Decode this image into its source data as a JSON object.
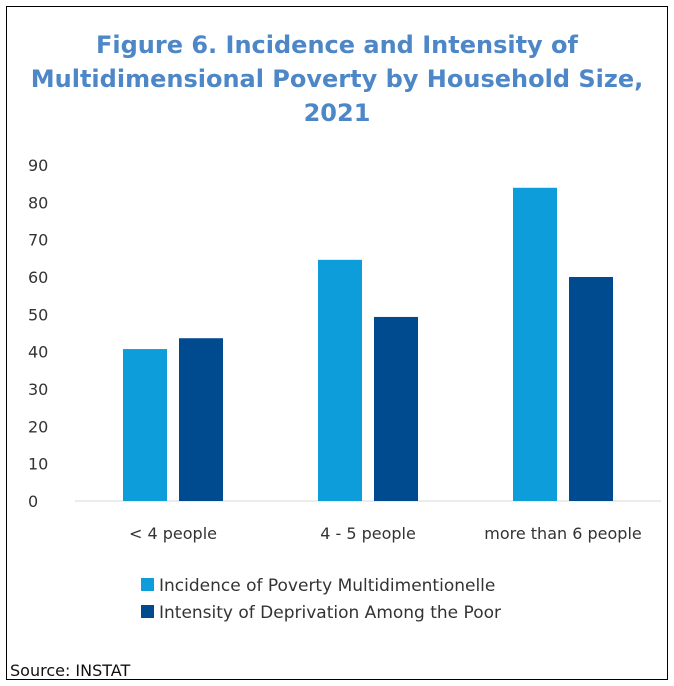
{
  "chart_data": {
    "type": "bar",
    "title": "Figure 6. Incidence and Intensity of\nMultidimensional Poverty by Household Size,\n2021",
    "categories": [
      "< 4 people",
      "4 - 5 people",
      "more than 6 people"
    ],
    "series": [
      {
        "name": "Incidence of Poverty Multidimentionelle",
        "values": [
          40.7,
          64.6,
          83.9
        ],
        "color": "#0d9ddb"
      },
      {
        "name": "Intensity of Deprivation Among the Poor",
        "values": [
          43.6,
          49.3,
          60.0
        ],
        "color": "#004a8f"
      }
    ],
    "yticks": [
      "0",
      "10",
      "20",
      "30",
      "40",
      "50",
      "60",
      "70",
      "80",
      "90"
    ],
    "ylim": [
      0,
      90
    ],
    "grid": false,
    "legend_position": "bottom"
  },
  "footer": {
    "source": "Source: INSTAT"
  }
}
